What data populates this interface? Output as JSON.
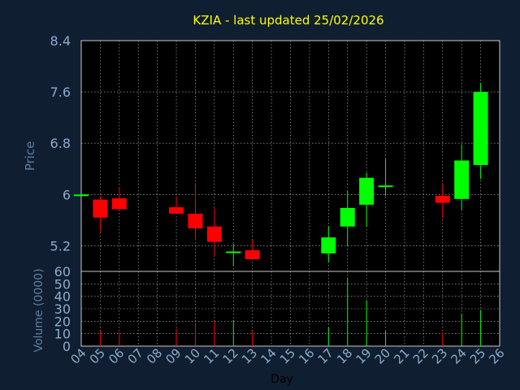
{
  "title": "KZIA - last updated 25/02/2026",
  "colors": {
    "background": "#0f1e30",
    "plot": "#000000",
    "title": "#ffff00",
    "axis_text": "#8eaccc",
    "axis_label": "#5e7fa0",
    "grid": "#ffffff",
    "up": "#00ff00",
    "down": "#ff0000"
  },
  "chart_data": [
    {
      "type": "candlestick",
      "ylabel": "Price",
      "ylim": [
        4.8,
        8.4
      ],
      "yticks": [
        "8.4",
        "7.6",
        "6.8",
        "6",
        "5.2"
      ],
      "ytick_values": [
        8.4,
        7.6,
        6.8,
        6.0,
        5.2
      ],
      "x_range": [
        4,
        26
      ],
      "grid": true,
      "candles": [
        {
          "day": 4,
          "open": 6.0,
          "high": 6.0,
          "low": 6.0,
          "close": 6.0
        },
        {
          "day": 5,
          "open": 5.92,
          "high": 5.98,
          "low": 5.42,
          "close": 5.64
        },
        {
          "day": 6,
          "open": 5.94,
          "high": 6.12,
          "low": 5.77,
          "close": 5.77
        },
        {
          "day": 9,
          "open": 5.8,
          "high": 5.97,
          "low": 5.7,
          "close": 5.7
        },
        {
          "day": 10,
          "open": 5.7,
          "high": 6.15,
          "low": 5.32,
          "close": 5.47
        },
        {
          "day": 11,
          "open": 5.5,
          "high": 5.78,
          "low": 5.03,
          "close": 5.26
        },
        {
          "day": 12,
          "open": 5.11,
          "high": 5.23,
          "low": 4.88,
          "close": 5.11
        },
        {
          "day": 13,
          "open": 5.13,
          "high": 5.3,
          "low": 4.99,
          "close": 4.99
        },
        {
          "day": 17,
          "open": 5.08,
          "high": 5.51,
          "low": 4.94,
          "close": 5.33
        },
        {
          "day": 18,
          "open": 5.5,
          "high": 6.05,
          "low": 5.2,
          "close": 5.79
        },
        {
          "day": 19,
          "open": 5.84,
          "high": 6.34,
          "low": 5.5,
          "close": 6.26
        },
        {
          "day": 20,
          "open": 6.12,
          "high": 6.55,
          "low": 5.98,
          "close": 6.14
        },
        {
          "day": 23,
          "open": 5.98,
          "high": 6.15,
          "low": 5.63,
          "close": 5.87
        },
        {
          "day": 24,
          "open": 5.93,
          "high": 6.78,
          "low": 5.76,
          "close": 6.53
        },
        {
          "day": 25,
          "open": 6.46,
          "high": 7.74,
          "low": 6.24,
          "close": 7.6
        }
      ]
    },
    {
      "type": "bar",
      "ylabel": "Volume (0000)",
      "xlabel": "Day",
      "ylim": [
        0,
        60
      ],
      "yticks": [
        "60",
        "50",
        "40",
        "30",
        "20",
        "10",
        "0"
      ],
      "ytick_values": [
        60,
        50,
        40,
        30,
        20,
        10,
        0
      ],
      "xticks": [
        "04",
        "05",
        "06",
        "07",
        "08",
        "09",
        "10",
        "11",
        "12",
        "13",
        "14",
        "15",
        "16",
        "17",
        "18",
        "19",
        "20",
        "21",
        "22",
        "23",
        "24",
        "25",
        "26"
      ],
      "xtick_values": [
        4,
        5,
        6,
        7,
        8,
        9,
        10,
        11,
        12,
        13,
        14,
        15,
        16,
        17,
        18,
        19,
        20,
        21,
        22,
        23,
        24,
        25,
        26
      ],
      "bars": [
        {
          "day": 5,
          "value": 12,
          "direction": "down"
        },
        {
          "day": 6,
          "value": 11,
          "direction": "down"
        },
        {
          "day": 9,
          "value": 14,
          "direction": "down"
        },
        {
          "day": 10,
          "value": 18,
          "direction": "down"
        },
        {
          "day": 11,
          "value": 20,
          "direction": "down"
        },
        {
          "day": 12,
          "value": 21,
          "direction": "up"
        },
        {
          "day": 13,
          "value": 12,
          "direction": "down"
        },
        {
          "day": 17,
          "value": 15,
          "direction": "up"
        },
        {
          "day": 18,
          "value": 55,
          "direction": "up"
        },
        {
          "day": 19,
          "value": 37,
          "direction": "up"
        },
        {
          "day": 20,
          "value": 12,
          "direction": "up"
        },
        {
          "day": 23,
          "value": 11,
          "direction": "down"
        },
        {
          "day": 24,
          "value": 26,
          "direction": "up"
        },
        {
          "day": 25,
          "value": 29,
          "direction": "up"
        }
      ]
    }
  ]
}
